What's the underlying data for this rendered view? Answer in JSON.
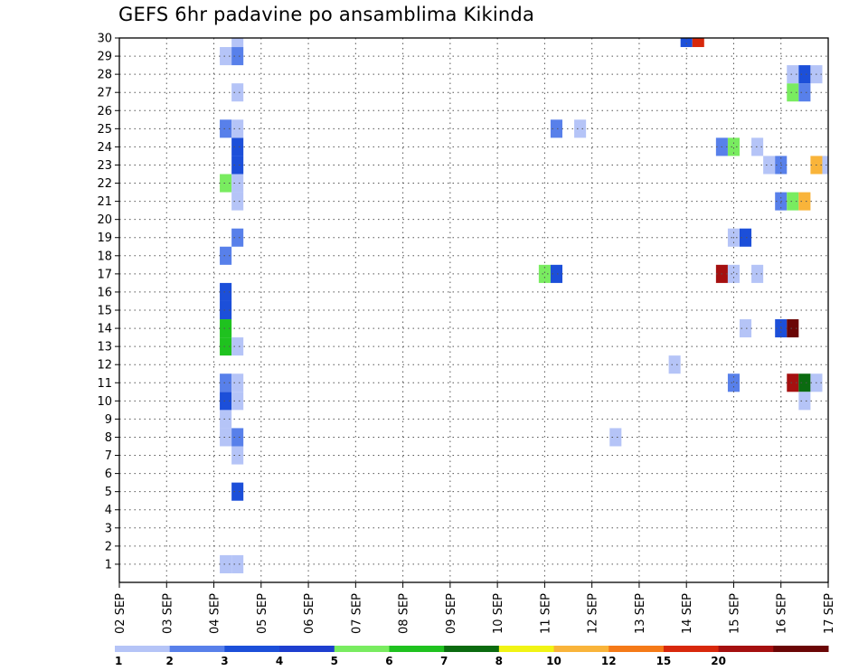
{
  "chart_data": {
    "type": "heatmap",
    "title": "GEFS 6hr padavine po ansamblima Kikinda",
    "xlabel": "",
    "ylabel": "",
    "x_ticks": [
      "02 SEP",
      "03 SEP",
      "04 SEP",
      "05 SEP",
      "06 SEP",
      "07 SEP",
      "08 SEP",
      "09 SEP",
      "10 SEP",
      "11 SEP",
      "12 SEP",
      "13 SEP",
      "14 SEP",
      "15 SEP",
      "16 SEP",
      "17 SEP"
    ],
    "y_ticks": [
      "1",
      "2",
      "3",
      "4",
      "5",
      "6",
      "7",
      "8",
      "9",
      "10",
      "11",
      "12",
      "13",
      "14",
      "15",
      "16",
      "17",
      "18",
      "19",
      "20",
      "21",
      "22",
      "23",
      "24",
      "25",
      "26",
      "27",
      "28",
      "29",
      "30"
    ],
    "xlim": [
      0,
      15
    ],
    "ylim": [
      0,
      30
    ],
    "grid": true,
    "legend": "bottom colorbar",
    "colorbar": {
      "labels": [
        "1",
        "2",
        "3",
        "4",
        "5",
        "6",
        "7",
        "8",
        "10",
        "12",
        "15",
        "20"
      ],
      "colors": [
        "#b5c4f7",
        "#5880ea",
        "#1c4fd9",
        "#1e3fcf",
        "#79ec60",
        "#1fc21f",
        "#0b6b10",
        "#f1f414",
        "#f9b43a",
        "#f57a18",
        "#d8280c",
        "#a51010",
        "#6b0606"
      ]
    },
    "cells": [
      {
        "x": 2.25,
        "y": 1,
        "v": 1
      },
      {
        "x": 2.5,
        "y": 1,
        "v": 1
      },
      {
        "x": 2.5,
        "y": 5,
        "v": 3
      },
      {
        "x": 2.5,
        "y": 7,
        "v": 1
      },
      {
        "x": 2.25,
        "y": 8,
        "v": 1
      },
      {
        "x": 2.5,
        "y": 8,
        "v": 2
      },
      {
        "x": 2.25,
        "y": 9,
        "v": 1
      },
      {
        "x": 2.25,
        "y": 10,
        "v": 3
      },
      {
        "x": 2.5,
        "y": 10,
        "v": 1
      },
      {
        "x": 2.25,
        "y": 11,
        "v": 2
      },
      {
        "x": 2.5,
        "y": 11,
        "v": 1
      },
      {
        "x": 2.25,
        "y": 13,
        "v": 6
      },
      {
        "x": 2.5,
        "y": 13,
        "v": 1
      },
      {
        "x": 2.25,
        "y": 14,
        "v": 6
      },
      {
        "x": 2.25,
        "y": 15,
        "v": 3
      },
      {
        "x": 2.25,
        "y": 16,
        "v": 3
      },
      {
        "x": 2.25,
        "y": 18,
        "v": 2
      },
      {
        "x": 2.5,
        "y": 19,
        "v": 2
      },
      {
        "x": 2.5,
        "y": 21,
        "v": 1
      },
      {
        "x": 2.25,
        "y": 22,
        "v": 5
      },
      {
        "x": 2.5,
        "y": 22,
        "v": 1
      },
      {
        "x": 2.5,
        "y": 23,
        "v": 3
      },
      {
        "x": 2.5,
        "y": 24,
        "v": 3
      },
      {
        "x": 2.25,
        "y": 25,
        "v": 2
      },
      {
        "x": 2.5,
        "y": 25,
        "v": 1
      },
      {
        "x": 2.5,
        "y": 27,
        "v": 1
      },
      {
        "x": 2.25,
        "y": 29,
        "v": 1
      },
      {
        "x": 2.5,
        "y": 29,
        "v": 2
      },
      {
        "x": 2.5,
        "y": 30,
        "v": 1
      },
      {
        "x": 9.0,
        "y": 17,
        "v": 5
      },
      {
        "x": 9.25,
        "y": 17,
        "v": 3
      },
      {
        "x": 9.25,
        "y": 25,
        "v": 2
      },
      {
        "x": 9.75,
        "y": 25,
        "v": 1
      },
      {
        "x": 10.5,
        "y": 8,
        "v": 1
      },
      {
        "x": 11.75,
        "y": 12,
        "v": 1
      },
      {
        "x": 12.0,
        "y": 30,
        "v": 3
      },
      {
        "x": 12.25,
        "y": 30,
        "v": 15
      },
      {
        "x": 12.75,
        "y": 24,
        "v": 2
      },
      {
        "x": 13.0,
        "y": 24,
        "v": 5
      },
      {
        "x": 12.75,
        "y": 17,
        "v": 20
      },
      {
        "x": 13.0,
        "y": 17,
        "v": 1
      },
      {
        "x": 13.0,
        "y": 19,
        "v": 1
      },
      {
        "x": 13.25,
        "y": 19,
        "v": 3
      },
      {
        "x": 13.0,
        "y": 11,
        "v": 2
      },
      {
        "x": 13.25,
        "y": 14,
        "v": 1
      },
      {
        "x": 13.5,
        "y": 17,
        "v": 1
      },
      {
        "x": 13.5,
        "y": 24,
        "v": 1
      },
      {
        "x": 13.75,
        "y": 23,
        "v": 1
      },
      {
        "x": 14.0,
        "y": 23,
        "v": 2
      },
      {
        "x": 14.0,
        "y": 21,
        "v": 2
      },
      {
        "x": 14.25,
        "y": 21,
        "v": 5
      },
      {
        "x": 14.5,
        "y": 21,
        "v": 10
      },
      {
        "x": 14.0,
        "y": 14,
        "v": 3
      },
      {
        "x": 14.25,
        "y": 14,
        "v": 25
      },
      {
        "x": 14.25,
        "y": 11,
        "v": 20
      },
      {
        "x": 14.5,
        "y": 11,
        "v": 7
      },
      {
        "x": 14.75,
        "y": 11,
        "v": 1
      },
      {
        "x": 14.5,
        "y": 10,
        "v": 1
      },
      {
        "x": 14.25,
        "y": 27,
        "v": 5
      },
      {
        "x": 14.5,
        "y": 27,
        "v": 2
      },
      {
        "x": 14.25,
        "y": 28,
        "v": 1
      },
      {
        "x": 14.5,
        "y": 28,
        "v": 3
      },
      {
        "x": 14.75,
        "y": 28,
        "v": 1
      },
      {
        "x": 14.75,
        "y": 23,
        "v": 10
      },
      {
        "x": 15.0,
        "y": 23,
        "v": 1
      }
    ]
  }
}
